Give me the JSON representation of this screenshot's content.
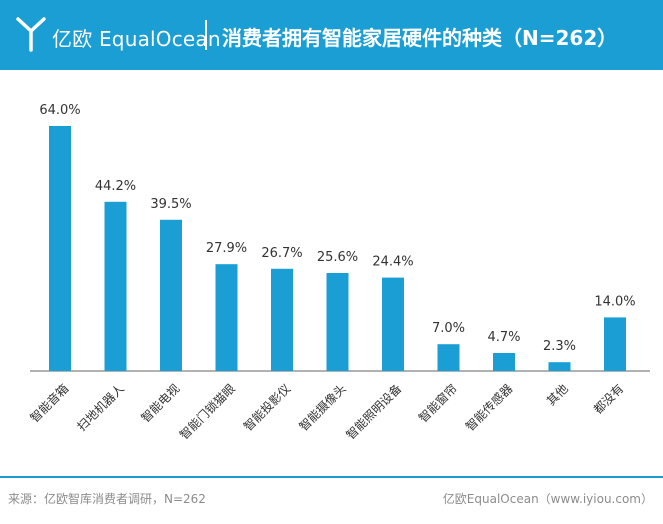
{
  "header": {
    "brand": "亿欧 EqualOcean",
    "title": "消费者拥有智能家居硬件的种类（N=262）"
  },
  "footer": {
    "source": "来源：亿欧智库消费者调研，N=262",
    "brand_url": "亿欧EqualOcean（www.iyiou.com）"
  },
  "colors": {
    "header_bg": "#1a9ed4",
    "bar": "#1a9ed4",
    "axis": "#666666",
    "text": "#333333"
  },
  "icons": [
    "equalocean-logo-icon"
  ],
  "chart_data": {
    "type": "bar",
    "categories": [
      "智能音箱",
      "扫地机器人",
      "智能电视",
      "智能门锁猫眼",
      "智能投影仪",
      "智能摄像头",
      "智能照明设备",
      "智能窗帘",
      "智能传感器",
      "其他",
      "都没有"
    ],
    "values": [
      64.0,
      44.2,
      39.5,
      27.9,
      26.7,
      25.6,
      24.4,
      7.0,
      4.7,
      2.3,
      14.0
    ],
    "value_labels": [
      "64.0%",
      "44.2%",
      "39.5%",
      "27.9%",
      "26.7%",
      "25.6%",
      "24.4%",
      "7.0%",
      "4.7%",
      "2.3%",
      "14.0%"
    ],
    "title": "消费者拥有智能家居硬件的种类（N=262）",
    "xlabel": "",
    "ylabel": "",
    "ylim": [
      0,
      64.0
    ],
    "grid": false,
    "legend": "none"
  }
}
